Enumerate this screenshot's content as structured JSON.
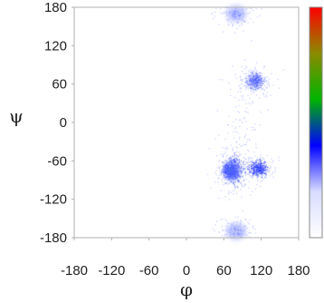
{
  "chart_data": {
    "type": "heatmap",
    "xlabel": "φ",
    "ylabel": "ψ",
    "xlim": [
      -180,
      180
    ],
    "ylim": [
      -180,
      180
    ],
    "x_ticks": [
      -180,
      -120,
      -60,
      0,
      60,
      120,
      180
    ],
    "y_ticks": [
      180,
      120,
      60,
      0,
      -60,
      -120,
      -180
    ],
    "grid": false,
    "colorbar": {
      "placement": "right",
      "colors": [
        "#ffffff",
        "#d8dcff",
        "#0000ff",
        "#00b400",
        "#8b8b00",
        "#ff0000"
      ]
    },
    "clusters": [
      {
        "phi": 70,
        "psi": -75,
        "intensity": 1.0,
        "spread_phi": 9,
        "spread_psi": 11
      },
      {
        "phi": 75,
        "psi": -75,
        "intensity": 0.6,
        "spread_phi": 18,
        "spread_psi": 25
      },
      {
        "phi": 115,
        "psi": -72,
        "intensity": 0.7,
        "spread_phi": 14,
        "spread_psi": 12
      },
      {
        "phi": 110,
        "psi": 65,
        "intensity": 0.45,
        "spread_phi": 16,
        "spread_psi": 14
      },
      {
        "phi": 80,
        "psi": 170,
        "intensity": 0.2,
        "spread_phi": 22,
        "spread_psi": 18
      },
      {
        "phi": 80,
        "psi": -170,
        "intensity": 0.2,
        "spread_phi": 22,
        "spread_psi": 18
      },
      {
        "phi": 90,
        "psi": 0,
        "intensity": 0.12,
        "spread_phi": 25,
        "spread_psi": 60
      }
    ]
  }
}
